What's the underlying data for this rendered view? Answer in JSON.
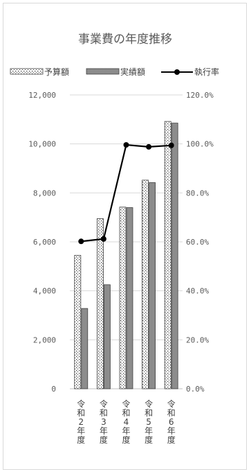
{
  "chart_data": {
    "type": "bar",
    "title": "事業費の年度推移",
    "categories": [
      "令和2年度",
      "令和3年度",
      "令和4年度",
      "令和5年度",
      "令和6年度"
    ],
    "series": [
      {
        "name": "予算額",
        "type": "bar",
        "axis": "left",
        "pattern": "dots",
        "values": [
          5450,
          6950,
          7420,
          8520,
          10920
        ]
      },
      {
        "name": "実績額",
        "type": "bar",
        "axis": "left",
        "pattern": "checker",
        "values": [
          3280,
          4250,
          7400,
          8420,
          10850
        ]
      },
      {
        "name": "執行率",
        "type": "line",
        "axis": "right",
        "color": "#000000",
        "values": [
          60.2,
          61.2,
          99.6,
          98.8,
          99.4
        ]
      }
    ],
    "y_left": {
      "min": 0,
      "max": 12000,
      "ticks": [
        "0",
        "2,000",
        "4,000",
        "6,000",
        "8,000",
        "10,000",
        "12,000"
      ]
    },
    "y_right": {
      "min": 0,
      "max": 120,
      "ticks": [
        "0.0%",
        "20.0%",
        "40.0%",
        "60.0%",
        "80.0%",
        "100.0%",
        "120.0%"
      ]
    },
    "grid": true,
    "legend_position": "top"
  }
}
